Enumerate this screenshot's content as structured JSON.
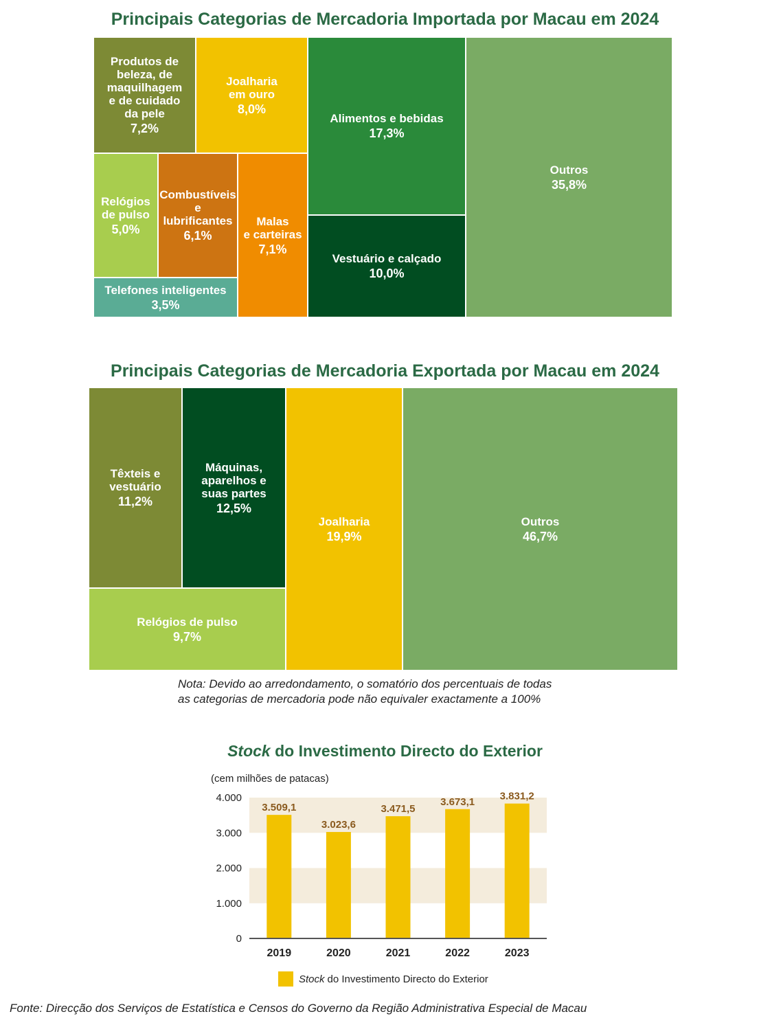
{
  "chart_data": [
    {
      "type": "treemap",
      "title": "Principais Categorias de Mercadoria Importada por Macau em 2024",
      "categories": [
        {
          "label": "Produtos de\nbeleza, de\nmaquilhagem\ne de cuidado\nda pele",
          "value_label": "7,2%",
          "value": 7.2,
          "color": "#7d8a35"
        },
        {
          "label": "Joalharia\nem ouro",
          "value_label": "8,0%",
          "value": 8.0,
          "color": "#f2c200"
        },
        {
          "label": "Relógios\nde pulso",
          "value_label": "5,0%",
          "value": 5.0,
          "color": "#a8cd4e"
        },
        {
          "label": "Combustíveis\ne\nlubrificantes",
          "value_label": "6,1%",
          "value": 6.1,
          "color": "#cd7412"
        },
        {
          "label": "Malas\ne carteiras",
          "value_label": "7,1%",
          "value": 7.1,
          "color": "#f08c00"
        },
        {
          "label": "Telefones inteligentes",
          "value_label": "3,5%",
          "value": 3.5,
          "color": "#5aac95"
        },
        {
          "label": "Alimentos e bebidas",
          "value_label": "17,3%",
          "value": 17.3,
          "color": "#2a8a3a"
        },
        {
          "label": "Vestuário e calçado",
          "value_label": "10,0%",
          "value": 10.0,
          "color": "#014d21"
        },
        {
          "label": "Outros",
          "value_label": "35,8%",
          "value": 35.8,
          "color": "#7aab64"
        }
      ]
    },
    {
      "type": "treemap",
      "title": "Principais Categorias de Mercadoria Exportada por Macau em 2024",
      "categories": [
        {
          "label": "Têxteis e\nvestuário",
          "value_label": "11,2%",
          "value": 11.2,
          "color": "#7d8a35"
        },
        {
          "label": "Máquinas,\naparelhos e\nsuas partes",
          "value_label": "12,5%",
          "value": 12.5,
          "color": "#014d21"
        },
        {
          "label": "Relógios de pulso",
          "value_label": "9,7%",
          "value": 9.7,
          "color": "#a8cd4e"
        },
        {
          "label": "Joalharia",
          "value_label": "19,9%",
          "value": 19.9,
          "color": "#f2c200"
        },
        {
          "label": "Outros",
          "value_label": "46,7%",
          "value": 46.7,
          "color": "#7aab64"
        }
      ]
    },
    {
      "type": "bar",
      "title_italic": "Stock",
      "title_rest": " do Investimento Directo do Exterior",
      "ylabel": "(cem milhões de patacas)",
      "categories": [
        "2019",
        "2020",
        "2021",
        "2022",
        "2023"
      ],
      "values": [
        3509.1,
        3023.6,
        3471.5,
        3673.1,
        3831.2
      ],
      "value_labels": [
        "3.509,1",
        "3.023,6",
        "3.471,5",
        "3.673,1",
        "3.831,2"
      ],
      "yticks": [
        0,
        1000,
        2000,
        3000,
        4000
      ],
      "ytick_labels": [
        "0",
        "1.000",
        "2.000",
        "3.000",
        "4.000"
      ],
      "ylim": [
        0,
        4000
      ],
      "legend_italic": "Stock",
      "legend_rest": "do Investimento Directo do Exterior",
      "bar_color": "#f2c200",
      "label_color": "#8a5a1e",
      "band_color": "#f4ecdc"
    }
  ],
  "note": {
    "line1": "Nota: Devido ao arredondamento, o somatório dos percentuais de todas",
    "line2": "as categorias de mercadoria pode não equivaler exactamente a 100%"
  },
  "source": "Fonte: Direcção dos Serviços de Estatística e Censos do Governo da Região Administrativa Especial de Macau"
}
